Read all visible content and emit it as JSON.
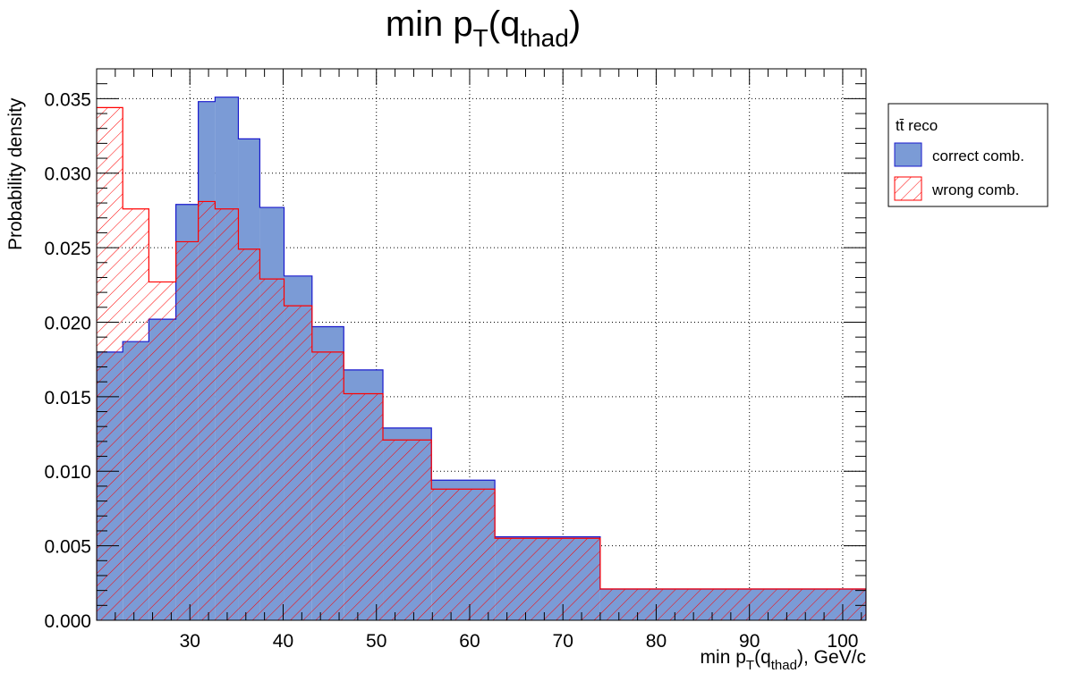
{
  "chart_data": {
    "type": "histogram",
    "title": {
      "main": "min p",
      "sub1": "T",
      "mid": "(q",
      "sub2": "thad",
      "end": ")"
    },
    "xlabel": {
      "main": "min p",
      "sub1": "T",
      "mid": "(q",
      "sub2": "thad",
      "end": "), GeV/c"
    },
    "ylabel": "Probability density",
    "xlim": [
      20,
      102.5
    ],
    "ylim": [
      0,
      0.037
    ],
    "x_ticks": [
      30,
      40,
      50,
      60,
      70,
      80,
      90,
      100
    ],
    "y_ticks": [
      "0.000",
      "0.005",
      "0.010",
      "0.015",
      "0.020",
      "0.025",
      "0.030",
      "0.035"
    ],
    "y_tick_values": [
      0,
      0.005,
      0.01,
      0.015,
      0.02,
      0.025,
      0.03,
      0.035
    ],
    "grid": true,
    "legend": {
      "title": "tt̄ reco",
      "position": "top-right outside",
      "entries": [
        "correct comb.",
        "wrong comb."
      ]
    },
    "bin_edges": [
      20,
      22.8,
      25.6,
      28.5,
      30.9,
      32.7,
      35.2,
      37.5,
      40.1,
      43.1,
      46.5,
      50.7,
      55.9,
      62.7,
      74.0,
      102.5
    ],
    "series": [
      {
        "name": "correct comb.",
        "fill": "#7b9bd6",
        "line": "#1a1acd",
        "style": "solid",
        "values": [
          0.018,
          0.0187,
          0.0202,
          0.0279,
          0.0348,
          0.0351,
          0.0323,
          0.0277,
          0.0231,
          0.0197,
          0.0168,
          0.0129,
          0.0094,
          0.0056,
          0.0021
        ]
      },
      {
        "name": "wrong comb.",
        "fill": "none",
        "line": "#ff0000",
        "style": "hatched",
        "values": [
          0.0344,
          0.0276,
          0.0227,
          0.0254,
          0.0281,
          0.0276,
          0.0249,
          0.0229,
          0.0211,
          0.018,
          0.0152,
          0.0121,
          0.0088,
          0.0055,
          0.0021
        ]
      }
    ]
  }
}
